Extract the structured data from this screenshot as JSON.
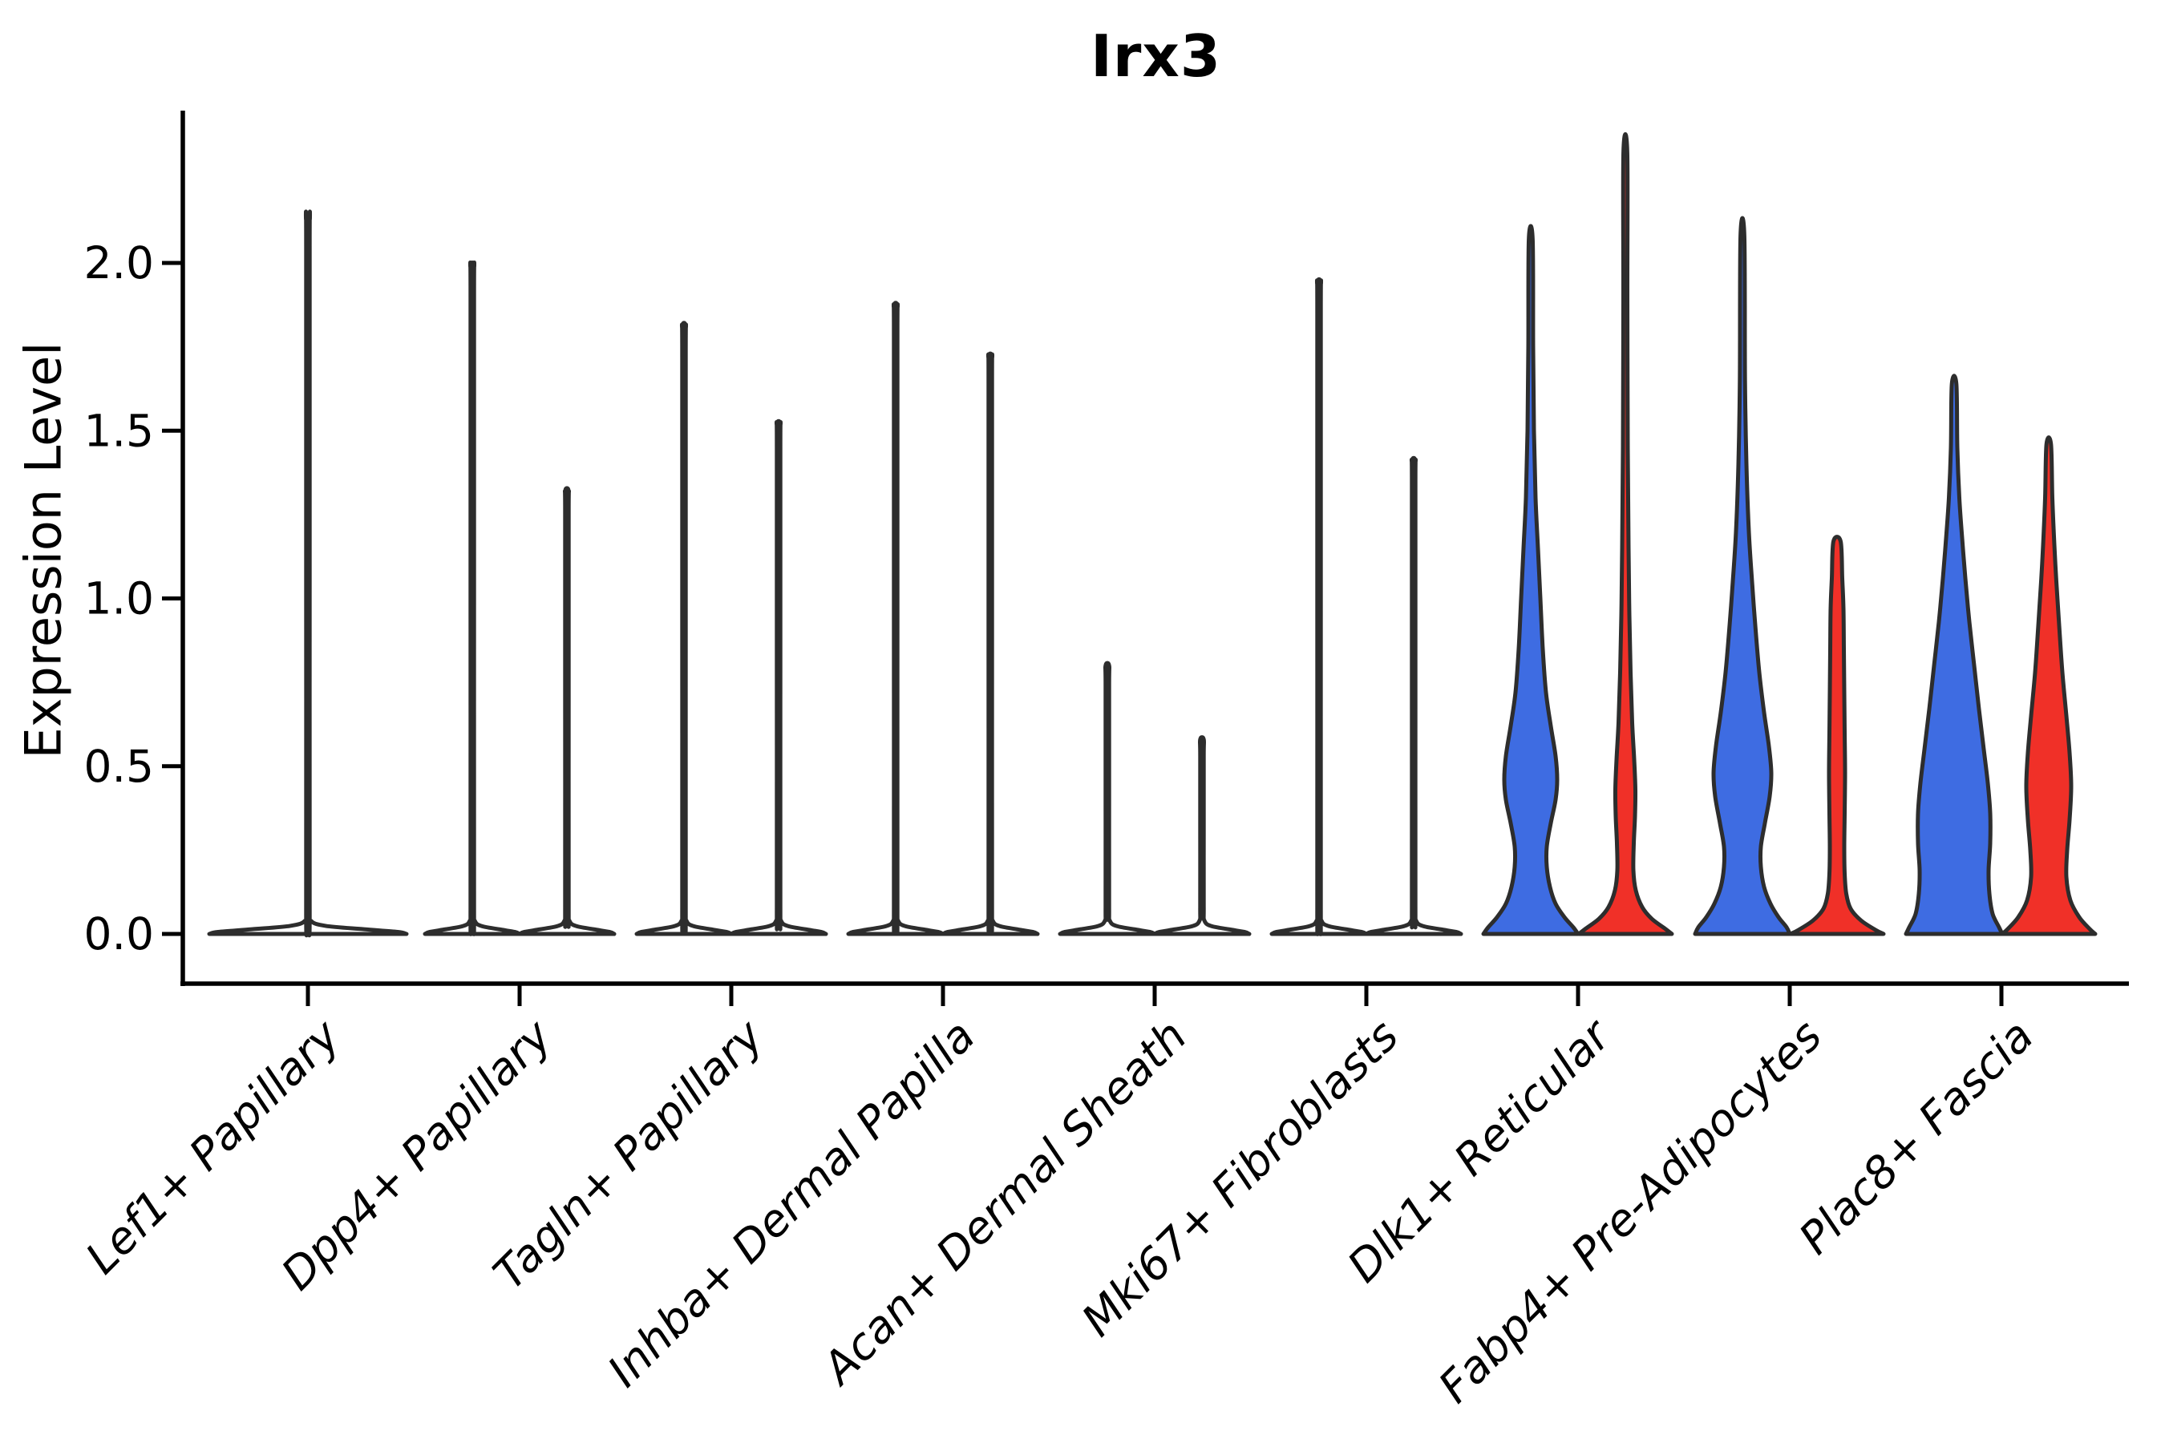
{
  "chart_data": {
    "type": "violin",
    "title": "Irx3",
    "ylabel": "Expression Level",
    "xlabel": "",
    "ylim": [
      -0.14,
      2.45
    ],
    "yticks": [
      "0.0",
      "0.5",
      "1.0",
      "1.5",
      "2.0"
    ],
    "ytick_values": [
      0.0,
      0.5,
      1.0,
      1.5,
      2.0
    ],
    "grid": false,
    "legend": "none",
    "categories": [
      "Lef1+ Papillary",
      "Dpp4+ Papillary",
      "Tagln+ Papillary",
      "Inhba+ Dermal Papilla",
      "Acan+ Dermal Sheath",
      "Mki67+ Fibroblasts",
      "Dlk1+ Reticular",
      "Fabp4+ Pre-Adipocytes",
      "Plac8+ Fascia"
    ],
    "colors": {
      "blue": "#3E6CE2",
      "red": "#F03028",
      "white": "#FFFFFF",
      "outline": "#2D2D2D",
      "axis": "#000000"
    },
    "violins": [
      {
        "category": "Lef1+ Papillary",
        "cat_index": 0,
        "side": "center",
        "color": "white",
        "max_expression": 2.13,
        "profile": [
          [
            0,
            123
          ],
          [
            0.006,
            112
          ],
          [
            0.014,
            70
          ],
          [
            0.024,
            22
          ],
          [
            0.04,
            3.5
          ],
          [
            0.08,
            2.2
          ],
          [
            1.05,
            2.2
          ],
          [
            2.05,
            2.2
          ],
          [
            2.13,
            2.2
          ]
        ]
      },
      {
        "category": "Dpp4+ Papillary",
        "cat_index": 1,
        "side": "left",
        "color": "white",
        "max_expression": 1.99,
        "profile": [
          [
            0,
            59
          ],
          [
            0.006,
            53
          ],
          [
            0.014,
            33
          ],
          [
            0.024,
            11
          ],
          [
            0.04,
            3
          ],
          [
            0.08,
            2.2
          ],
          [
            1.0,
            2.2
          ],
          [
            1.9,
            2.2
          ],
          [
            1.99,
            2.2
          ]
        ]
      },
      {
        "category": "Dpp4+ Papillary",
        "cat_index": 1,
        "side": "right",
        "color": "white",
        "max_expression": 1.32,
        "profile": [
          [
            0,
            59
          ],
          [
            0.006,
            53
          ],
          [
            0.014,
            33
          ],
          [
            0.024,
            11
          ],
          [
            0.04,
            3
          ],
          [
            0.08,
            2.2
          ],
          [
            0.7,
            2.2
          ],
          [
            1.25,
            2.2
          ],
          [
            1.32,
            2.2
          ]
        ]
      },
      {
        "category": "Tagln+ Papillary",
        "cat_index": 2,
        "side": "left",
        "color": "white",
        "max_expression": 1.81,
        "profile": [
          [
            0,
            59
          ],
          [
            0.006,
            53
          ],
          [
            0.014,
            33
          ],
          [
            0.024,
            11
          ],
          [
            0.04,
            3
          ],
          [
            0.08,
            2.2
          ],
          [
            0.9,
            2.2
          ],
          [
            1.72,
            2.2
          ],
          [
            1.81,
            2.2
          ]
        ]
      },
      {
        "category": "Tagln+ Papillary",
        "cat_index": 2,
        "side": "right",
        "color": "white",
        "max_expression": 1.52,
        "profile": [
          [
            0,
            59
          ],
          [
            0.006,
            53
          ],
          [
            0.014,
            33
          ],
          [
            0.024,
            11
          ],
          [
            0.04,
            3
          ],
          [
            0.08,
            2.2
          ],
          [
            0.8,
            2.2
          ],
          [
            1.45,
            2.2
          ],
          [
            1.52,
            2.2
          ]
        ]
      },
      {
        "category": "Inhba+ Dermal Papilla",
        "cat_index": 3,
        "side": "left",
        "color": "white",
        "max_expression": 1.87,
        "profile": [
          [
            0,
            59
          ],
          [
            0.006,
            53
          ],
          [
            0.014,
            33
          ],
          [
            0.024,
            11
          ],
          [
            0.04,
            3
          ],
          [
            0.08,
            2.2
          ],
          [
            0.95,
            2.2
          ],
          [
            1.78,
            2.2
          ],
          [
            1.87,
            2.2
          ]
        ]
      },
      {
        "category": "Inhba+ Dermal Papilla",
        "cat_index": 3,
        "side": "right",
        "color": "white",
        "max_expression": 1.72,
        "profile": [
          [
            0,
            59
          ],
          [
            0.006,
            53
          ],
          [
            0.014,
            33
          ],
          [
            0.024,
            11
          ],
          [
            0.04,
            3
          ],
          [
            0.08,
            2.2
          ],
          [
            0.88,
            2.2
          ],
          [
            1.64,
            2.2
          ],
          [
            1.72,
            2.2
          ]
        ]
      },
      {
        "category": "Acan+ Dermal Sheath",
        "cat_index": 4,
        "side": "left",
        "color": "white",
        "max_expression": 0.8,
        "profile": [
          [
            0,
            59
          ],
          [
            0.006,
            53
          ],
          [
            0.014,
            33
          ],
          [
            0.024,
            11
          ],
          [
            0.04,
            3
          ],
          [
            0.08,
            2.2
          ],
          [
            0.4,
            2.2
          ],
          [
            0.74,
            2.2
          ],
          [
            0.8,
            2.2
          ]
        ]
      },
      {
        "category": "Acan+ Dermal Sheath",
        "cat_index": 4,
        "side": "right",
        "color": "white",
        "max_expression": 0.58,
        "profile": [
          [
            0,
            59
          ],
          [
            0.006,
            53
          ],
          [
            0.014,
            33
          ],
          [
            0.024,
            11
          ],
          [
            0.04,
            3
          ],
          [
            0.08,
            2.2
          ],
          [
            0.3,
            2.2
          ],
          [
            0.53,
            2.2
          ],
          [
            0.58,
            2.2
          ]
        ]
      },
      {
        "category": "Mki67+ Fibroblasts",
        "cat_index": 5,
        "side": "left",
        "color": "white",
        "max_expression": 1.94,
        "profile": [
          [
            0,
            59
          ],
          [
            0.006,
            53
          ],
          [
            0.014,
            33
          ],
          [
            0.024,
            11
          ],
          [
            0.04,
            3
          ],
          [
            0.08,
            2.2
          ],
          [
            1.0,
            2.2
          ],
          [
            1.85,
            2.2
          ],
          [
            1.94,
            2.2
          ]
        ]
      },
      {
        "category": "Mki67+ Fibroblasts",
        "cat_index": 5,
        "side": "right",
        "color": "white",
        "max_expression": 1.41,
        "profile": [
          [
            0,
            59
          ],
          [
            0.006,
            53
          ],
          [
            0.014,
            33
          ],
          [
            0.024,
            11
          ],
          [
            0.04,
            3
          ],
          [
            0.08,
            2.2
          ],
          [
            0.72,
            2.2
          ],
          [
            1.34,
            2.2
          ],
          [
            1.41,
            2.2
          ]
        ]
      },
      {
        "category": "Dlk1+ Reticular",
        "cat_index": 6,
        "side": "left",
        "color": "blue",
        "max_expression": 2.07,
        "profile": [
          [
            0,
            59
          ],
          [
            0.02,
            53
          ],
          [
            0.05,
            42
          ],
          [
            0.09,
            31
          ],
          [
            0.14,
            24
          ],
          [
            0.2,
            20
          ],
          [
            0.26,
            20
          ],
          [
            0.33,
            25
          ],
          [
            0.4,
            31
          ],
          [
            0.46,
            33
          ],
          [
            0.53,
            31
          ],
          [
            0.62,
            25
          ],
          [
            0.72,
            19
          ],
          [
            0.85,
            15
          ],
          [
            1.0,
            12
          ],
          [
            1.15,
            9
          ],
          [
            1.3,
            6
          ],
          [
            1.5,
            4
          ],
          [
            1.75,
            3
          ],
          [
            2.07,
            2.4
          ]
        ]
      },
      {
        "category": "Dlk1+ Reticular",
        "cat_index": 6,
        "side": "right",
        "color": "red",
        "max_expression": 2.33,
        "profile": [
          [
            0,
            58
          ],
          [
            0.015,
            50
          ],
          [
            0.045,
            33
          ],
          [
            0.08,
            21
          ],
          [
            0.13,
            13
          ],
          [
            0.19,
            10
          ],
          [
            0.27,
            10.5
          ],
          [
            0.35,
            12
          ],
          [
            0.43,
            12.5
          ],
          [
            0.52,
            11
          ],
          [
            0.63,
            8.5
          ],
          [
            0.78,
            6.5
          ],
          [
            0.95,
            5
          ],
          [
            1.15,
            4
          ],
          [
            1.45,
            3
          ],
          [
            1.9,
            2.5
          ],
          [
            2.33,
            2.4
          ]
        ]
      },
      {
        "category": "Fabp4+ Pre-Adipocytes",
        "cat_index": 7,
        "side": "left",
        "color": "blue",
        "max_expression": 2.08,
        "profile": [
          [
            0,
            59
          ],
          [
            0.02,
            55
          ],
          [
            0.05,
            45
          ],
          [
            0.09,
            35
          ],
          [
            0.14,
            27
          ],
          [
            0.2,
            23
          ],
          [
            0.26,
            23
          ],
          [
            0.33,
            28
          ],
          [
            0.41,
            34
          ],
          [
            0.48,
            36
          ],
          [
            0.56,
            33
          ],
          [
            0.66,
            27
          ],
          [
            0.78,
            21
          ],
          [
            0.92,
            16
          ],
          [
            1.05,
            12
          ],
          [
            1.2,
            8
          ],
          [
            1.4,
            5
          ],
          [
            1.65,
            3.2
          ],
          [
            2.08,
            2.4
          ]
        ]
      },
      {
        "category": "Fabp4+ Pre-Adipocytes",
        "cat_index": 7,
        "side": "right",
        "color": "red",
        "max_expression": 1.17,
        "profile": [
          [
            0,
            58
          ],
          [
            0.012,
            48
          ],
          [
            0.04,
            30
          ],
          [
            0.075,
            17
          ],
          [
            0.12,
            11.5
          ],
          [
            0.18,
            9.5
          ],
          [
            0.26,
            9
          ],
          [
            0.36,
            9.5
          ],
          [
            0.48,
            10
          ],
          [
            0.6,
            9.5
          ],
          [
            0.72,
            9
          ],
          [
            0.85,
            8.5
          ],
          [
            0.97,
            8
          ],
          [
            1.06,
            6.5
          ],
          [
            1.17,
            4.5
          ]
        ]
      },
      {
        "category": "Plac8+ Fascia",
        "cat_index": 8,
        "side": "left",
        "color": "blue",
        "max_expression": 1.64,
        "profile": [
          [
            0,
            60
          ],
          [
            0.02,
            56
          ],
          [
            0.06,
            48
          ],
          [
            0.12,
            44
          ],
          [
            0.19,
            43
          ],
          [
            0.27,
            45
          ],
          [
            0.36,
            45
          ],
          [
            0.45,
            42
          ],
          [
            0.55,
            37
          ],
          [
            0.67,
            31
          ],
          [
            0.8,
            25
          ],
          [
            0.93,
            19
          ],
          [
            1.06,
            14
          ],
          [
            1.18,
            10
          ],
          [
            1.3,
            6.5
          ],
          [
            1.45,
            4
          ],
          [
            1.64,
            2.8
          ]
        ]
      },
      {
        "category": "Plac8+ Fascia",
        "cat_index": 8,
        "side": "right",
        "color": "red",
        "max_expression": 1.46,
        "profile": [
          [
            0,
            58
          ],
          [
            0.015,
            51
          ],
          [
            0.05,
            38
          ],
          [
            0.1,
            27
          ],
          [
            0.17,
            22
          ],
          [
            0.25,
            23
          ],
          [
            0.34,
            26
          ],
          [
            0.44,
            28
          ],
          [
            0.54,
            26
          ],
          [
            0.65,
            22
          ],
          [
            0.78,
            17
          ],
          [
            0.92,
            13
          ],
          [
            1.05,
            9.5
          ],
          [
            1.16,
            7
          ],
          [
            1.3,
            4.5
          ],
          [
            1.46,
            2.8
          ]
        ]
      }
    ]
  }
}
